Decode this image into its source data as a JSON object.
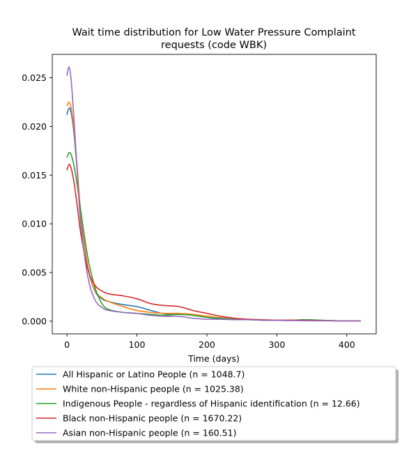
{
  "chart_data": {
    "type": "line",
    "title_line1": "Wait time distribution  for Low Water Pressure Complaint",
    "title_line2": "requests (code WBK)",
    "xlabel": "Time (days)",
    "ylabel": "",
    "xlim": [
      -21,
      442
    ],
    "ylim": [
      -0.0013,
      0.0274
    ],
    "xticks": [
      0,
      100,
      200,
      300,
      400
    ],
    "yticks": [
      0.0,
      0.005,
      0.01,
      0.015,
      0.02,
      0.025
    ],
    "ytick_labels": [
      "0.000",
      "0.005",
      "0.010",
      "0.015",
      "0.020",
      "0.025"
    ],
    "xtick_labels": [
      "0",
      "100",
      "200",
      "300",
      "400"
    ],
    "legend_position": "below",
    "x": [
      0,
      3,
      6,
      10,
      15,
      20,
      30,
      40,
      50,
      60,
      80,
      100,
      120,
      140,
      160,
      180,
      200,
      220,
      240,
      260,
      280,
      300,
      320,
      340,
      360,
      380,
      400,
      420
    ],
    "series": [
      {
        "name": "All Hispanic or Latino People (n = 1048.7)",
        "color": "#1f77b4",
        "values": [
          0.0212,
          0.0219,
          0.0214,
          0.0193,
          0.0152,
          0.0108,
          0.0055,
          0.0031,
          0.0023,
          0.002,
          0.0017,
          0.0015,
          0.0011,
          0.00075,
          0.00075,
          0.0006,
          0.0004,
          0.00025,
          0.0002,
          0.00015,
          0.0001,
          8e-05,
          8e-05,
          0.00015,
          0.0001,
          5e-05,
          3e-05,
          2e-05
        ]
      },
      {
        "name": "White non-Hispanic people (n = 1025.38)",
        "color": "#ff7f0e",
        "values": [
          0.0221,
          0.0225,
          0.0219,
          0.0197,
          0.0155,
          0.011,
          0.0056,
          0.0032,
          0.0024,
          0.002,
          0.0015,
          0.0011,
          0.0009,
          0.0008,
          0.0008,
          0.0007,
          0.0005,
          0.00035,
          0.0002,
          0.00015,
          0.0001,
          8e-05,
          8e-05,
          0.0001,
          8e-05,
          5e-05,
          3e-05,
          2e-05
        ]
      },
      {
        "name": "Indigenous People - regardless of Hispanic identification (n = 12.66)",
        "color": "#2ca02c",
        "values": [
          0.0168,
          0.0173,
          0.0171,
          0.016,
          0.0138,
          0.0112,
          0.0065,
          0.0035,
          0.0018,
          0.0012,
          0.0009,
          0.0008,
          0.0007,
          0.0006,
          0.0007,
          0.0006,
          0.0004,
          0.0003,
          0.0002,
          0.00015,
          0.0001,
          8e-05,
          0.0001,
          0.00015,
          0.0001,
          5e-05,
          3e-05,
          2e-05
        ]
      },
      {
        "name": "Black non-Hispanic people (n = 1670.22)",
        "color": "#d62728",
        "values": [
          0.0155,
          0.0161,
          0.0157,
          0.0143,
          0.0117,
          0.0089,
          0.0053,
          0.0037,
          0.0031,
          0.0028,
          0.0026,
          0.0023,
          0.0018,
          0.0016,
          0.0015,
          0.0011,
          0.0008,
          0.0005,
          0.0003,
          0.0002,
          0.00015,
          0.0001,
          0.0001,
          8e-05,
          6e-05,
          5e-05,
          3e-05,
          2e-05
        ]
      },
      {
        "name": "Asian non-Hispanic people (n = 160.51)",
        "color": "#9467bd",
        "values": [
          0.0252,
          0.0261,
          0.0248,
          0.0208,
          0.015,
          0.0098,
          0.0045,
          0.0022,
          0.0014,
          0.0011,
          0.0009,
          0.0008,
          0.0006,
          0.0005,
          0.0005,
          0.0003,
          0.0002,
          0.0002,
          0.00015,
          0.00015,
          0.0001,
          8e-05,
          6e-05,
          5e-05,
          4e-05,
          3e-05,
          2e-05,
          1e-05
        ]
      }
    ]
  }
}
